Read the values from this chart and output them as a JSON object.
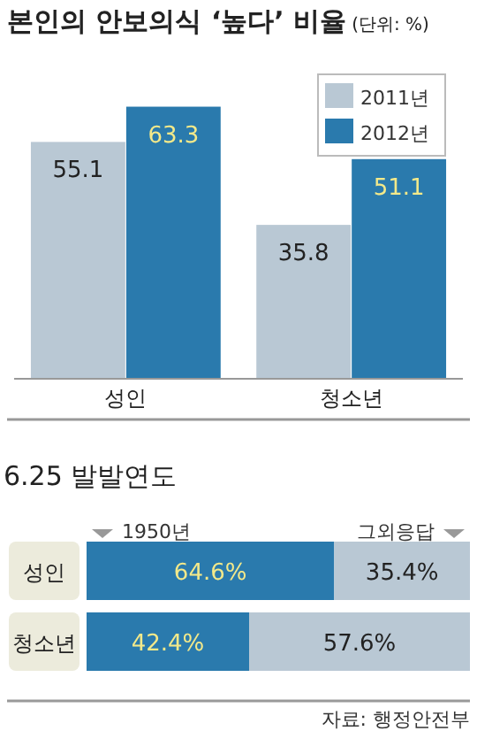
{
  "chart_data": [
    {
      "type": "bar",
      "title": "본인의 안보의식 ‘높다’ 비율",
      "subtitle": "(단위: %)",
      "categories": [
        "성인",
        "청소년"
      ],
      "ylim": [
        0,
        70
      ],
      "data_labels": true,
      "legend": "top right",
      "series": [
        {
          "name": "2011년",
          "color": "#b9c8d4",
          "values": [
            55.1,
            35.8
          ]
        },
        {
          "name": "2012년",
          "color": "#2a7aad",
          "values": [
            63.3,
            51.1
          ]
        }
      ]
    },
    {
      "type": "bar",
      "orientation": "horizontal",
      "stacked": true,
      "title": "6.25 발발연도",
      "categories": [
        "성인",
        "청소년"
      ],
      "xlim": [
        0,
        100
      ],
      "legend": "top",
      "tick_labels": "y",
      "annotations": [
        "자료: 행정안전부"
      ],
      "series": [
        {
          "name": "1950년",
          "color": "#2a7aad",
          "values": [
            64.6,
            42.4
          ],
          "value_labels": [
            "64.6%",
            "42.4%"
          ]
        },
        {
          "name": "그외응답",
          "color": "#b9c8d4",
          "values": [
            35.4,
            57.6
          ],
          "value_labels": [
            "35.4%",
            "57.6%"
          ]
        }
      ]
    }
  ]
}
